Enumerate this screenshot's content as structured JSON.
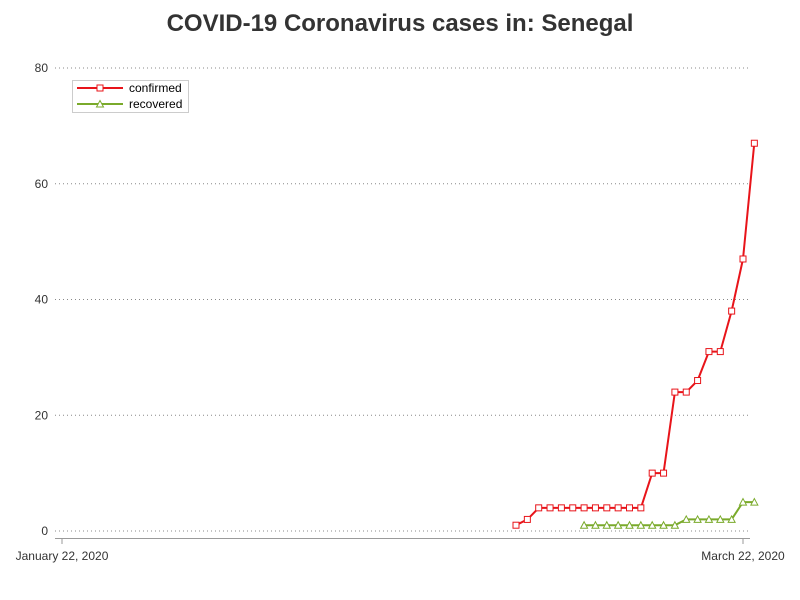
{
  "chart_data": {
    "type": "line",
    "title": "COVID-19 Coronavirus cases in: Senegal",
    "xlabel": "",
    "ylabel": "",
    "x_tick_labels": [
      "January 22, 2020",
      "March 22, 2020"
    ],
    "x_range": [
      "2020-01-22",
      "2020-03-22"
    ],
    "ylim": [
      0,
      80
    ],
    "y_ticks": [
      0,
      20,
      40,
      60,
      80
    ],
    "grid": "horizontal-dotted",
    "legend_position": "top-left",
    "series": [
      {
        "name": "confirmed",
        "color": "#e8141a",
        "marker": "square",
        "points": [
          {
            "date": "2020-03-02",
            "value": 1
          },
          {
            "date": "2020-03-03",
            "value": 2
          },
          {
            "date": "2020-03-04",
            "value": 4
          },
          {
            "date": "2020-03-05",
            "value": 4
          },
          {
            "date": "2020-03-06",
            "value": 4
          },
          {
            "date": "2020-03-07",
            "value": 4
          },
          {
            "date": "2020-03-08",
            "value": 4
          },
          {
            "date": "2020-03-09",
            "value": 4
          },
          {
            "date": "2020-03-10",
            "value": 4
          },
          {
            "date": "2020-03-11",
            "value": 4
          },
          {
            "date": "2020-03-12",
            "value": 4
          },
          {
            "date": "2020-03-13",
            "value": 4
          },
          {
            "date": "2020-03-14",
            "value": 10
          },
          {
            "date": "2020-03-15",
            "value": 10
          },
          {
            "date": "2020-03-16",
            "value": 24
          },
          {
            "date": "2020-03-17",
            "value": 24
          },
          {
            "date": "2020-03-18",
            "value": 26
          },
          {
            "date": "2020-03-19",
            "value": 31
          },
          {
            "date": "2020-03-20",
            "value": 31
          },
          {
            "date": "2020-03-21",
            "value": 38
          },
          {
            "date": "2020-03-22",
            "value": 47
          },
          {
            "date": "2020-03-23",
            "value": 67
          }
        ]
      },
      {
        "name": "recovered",
        "color": "#7aaa2b",
        "marker": "triangle",
        "points": [
          {
            "date": "2020-03-08",
            "value": 1
          },
          {
            "date": "2020-03-09",
            "value": 1
          },
          {
            "date": "2020-03-10",
            "value": 1
          },
          {
            "date": "2020-03-11",
            "value": 1
          },
          {
            "date": "2020-03-12",
            "value": 1
          },
          {
            "date": "2020-03-13",
            "value": 1
          },
          {
            "date": "2020-03-14",
            "value": 1
          },
          {
            "date": "2020-03-15",
            "value": 1
          },
          {
            "date": "2020-03-16",
            "value": 1
          },
          {
            "date": "2020-03-17",
            "value": 2
          },
          {
            "date": "2020-03-18",
            "value": 2
          },
          {
            "date": "2020-03-19",
            "value": 2
          },
          {
            "date": "2020-03-20",
            "value": 2
          },
          {
            "date": "2020-03-21",
            "value": 2
          },
          {
            "date": "2020-03-22",
            "value": 5
          },
          {
            "date": "2020-03-23",
            "value": 5
          }
        ]
      }
    ]
  }
}
